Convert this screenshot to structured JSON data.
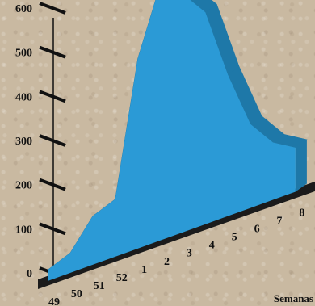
{
  "chart_data": {
    "type": "area",
    "title": "",
    "xlabel": "Semanas",
    "ylabel": "",
    "ylim": [
      0,
      600
    ],
    "yticks": [
      0,
      100,
      200,
      300,
      400,
      500,
      600
    ],
    "categories": [
      "49",
      "50",
      "51",
      "52",
      "1",
      "2",
      "3",
      "4",
      "5",
      "6",
      "7",
      "8"
    ],
    "values": [
      25,
      45,
      110,
      130,
      430,
      580,
      540,
      480,
      320,
      190,
      130,
      100
    ],
    "grid": false,
    "colors": {
      "front": "#2b9ad6",
      "top": "#1e78a8",
      "floor": "#1b1b1b"
    }
  }
}
